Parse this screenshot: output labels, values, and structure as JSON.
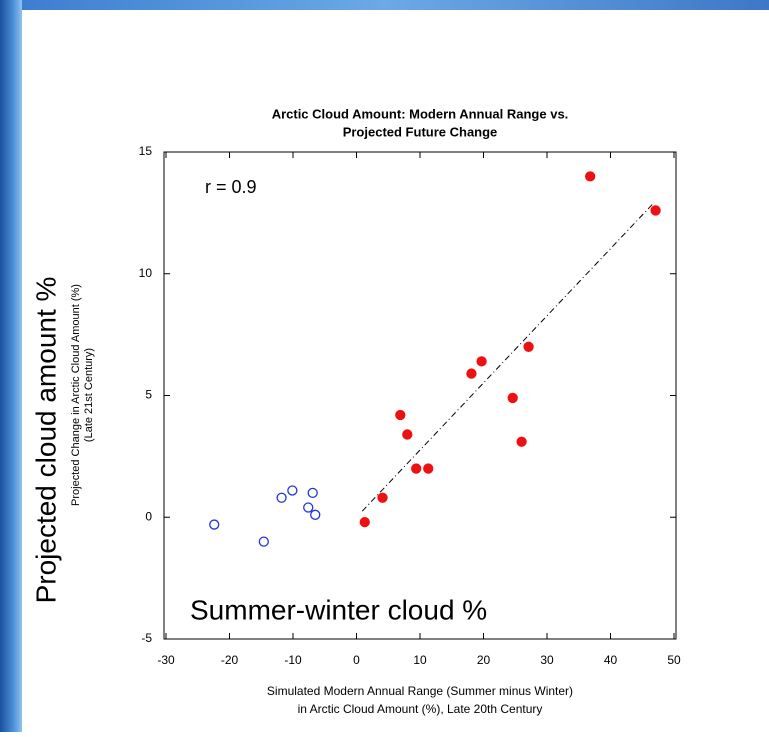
{
  "chart_data": {
    "type": "scatter",
    "title": [
      "Arctic Cloud Amount: Modern Annual Range vs.",
      "Projected Future Change"
    ],
    "x_label": [
      "Simulated Modern Annual Range (Summer minus Winter)",
      "in Arctic Cloud Amount (%), Late 20th Century"
    ],
    "y_label": [
      "Projected Change in Arctic Cloud Amount (%)",
      "(Late 21st Century)"
    ],
    "annotations": [
      "r = 0.9",
      "Projected cloud amount %",
      "Summer-winter cloud %"
    ],
    "xlim": [
      -30,
      50
    ],
    "xticks": [
      -30,
      -20,
      -10,
      0,
      10,
      20,
      30,
      40,
      50
    ],
    "ylim": [
      -5,
      15
    ],
    "yticks": [
      -5,
      0,
      5,
      10,
      15
    ],
    "series": [
      {
        "color": "#ee1111",
        "filled": true,
        "x": [
          1.3,
          4.1,
          6.9,
          8.0,
          9.4,
          11.3,
          18.1,
          19.7,
          24.6,
          26.0,
          27.1,
          36.8,
          47.1
        ],
        "values": [
          -0.2,
          0.8,
          4.2,
          3.4,
          2.0,
          2.0,
          5.9,
          6.4,
          4.9,
          3.1,
          7.0,
          14.0,
          12.6
        ]
      },
      {
        "color": "#2233dd",
        "filled": false,
        "x": [
          -22.4,
          -14.6,
          -11.8,
          -10.1,
          -7.6,
          -6.9,
          -6.5
        ],
        "values": [
          -0.3,
          -1.0,
          0.8,
          1.1,
          0.4,
          1.0,
          0.1
        ]
      }
    ],
    "fit_line": {
      "x": [
        0.9,
        46.6
      ],
      "values": [
        0.25,
        12.85
      ],
      "color": "#000000"
    }
  }
}
